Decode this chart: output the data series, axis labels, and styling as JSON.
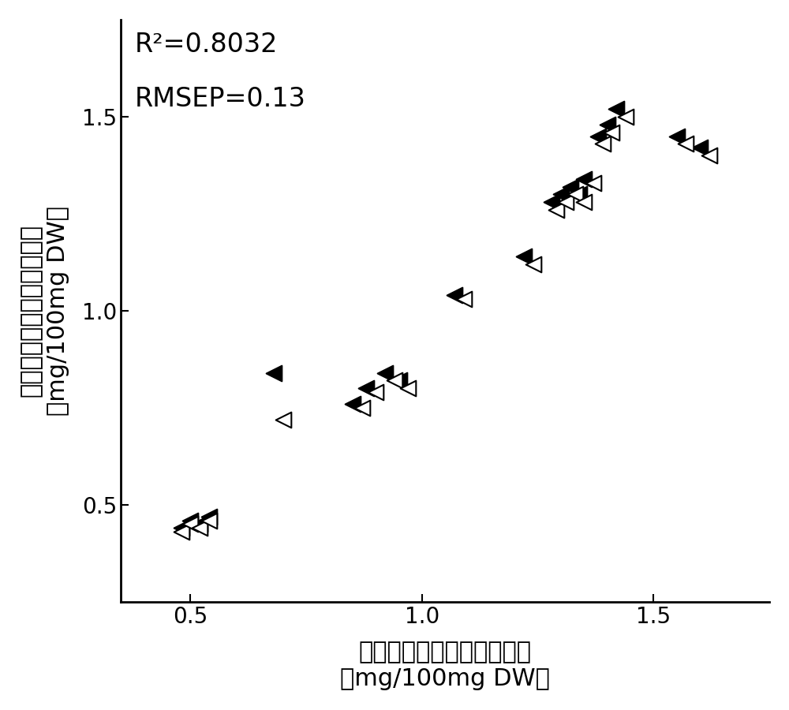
{
  "annotation_r2": "R²=0.8032",
  "annotation_rmsep": "RMSEP=0.13",
  "xlabel_line1": "玉米叶片苏氨酸含量实际值",
  "xlabel_line2": "（mg/100mg DW）",
  "ylabel_line1": "玉米叶片苏氨酸含量预测值",
  "ylabel_line2": "（mg/100mg DW）",
  "xlim": [
    0.35,
    1.75
  ],
  "ylim": [
    0.25,
    1.75
  ],
  "xticks": [
    0.5,
    1.0,
    1.5
  ],
  "yticks": [
    0.5,
    1.0,
    1.5
  ],
  "filled_x": [
    0.48,
    0.5,
    0.52,
    0.54,
    0.68,
    0.85,
    0.88,
    0.92,
    0.95,
    1.07,
    1.22,
    1.28,
    1.3,
    1.32,
    1.34,
    1.35,
    1.38,
    1.4,
    1.42,
    1.55,
    1.6
  ],
  "filled_y": [
    0.44,
    0.46,
    0.45,
    0.47,
    0.84,
    0.76,
    0.8,
    0.84,
    0.82,
    1.04,
    1.14,
    1.28,
    1.3,
    1.32,
    1.3,
    1.34,
    1.45,
    1.48,
    1.52,
    1.45,
    1.42
  ],
  "open_x": [
    0.48,
    0.5,
    0.52,
    0.54,
    0.7,
    0.87,
    0.9,
    0.94,
    0.97,
    1.09,
    1.24,
    1.29,
    1.31,
    1.33,
    1.35,
    1.37,
    1.39,
    1.41,
    1.44,
    1.57,
    1.62
  ],
  "open_y": [
    0.43,
    0.45,
    0.44,
    0.46,
    0.72,
    0.75,
    0.79,
    0.82,
    0.8,
    1.03,
    1.12,
    1.26,
    1.28,
    1.3,
    1.28,
    1.33,
    1.43,
    1.46,
    1.5,
    1.43,
    1.4
  ],
  "marker_size": 200,
  "bg_color": "#ffffff",
  "spine_color": "#000000",
  "annotation_fontsize": 24,
  "tick_fontsize": 20,
  "label_fontsize": 22
}
